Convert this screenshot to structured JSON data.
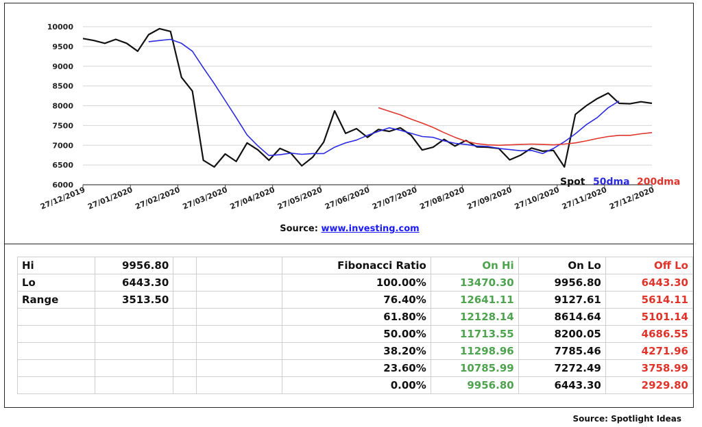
{
  "chart_data": {
    "type": "line",
    "y_ticks": [
      "10000",
      "9500",
      "9000",
      "8500",
      "8000",
      "7500",
      "7000",
      "6500",
      "6000"
    ],
    "ylim": [
      6000,
      10000
    ],
    "x_tick_labels": [
      "27/12/2019",
      "27/01/2020",
      "27/02/2020",
      "27/03/2020",
      "27/04/2020",
      "27/05/2020",
      "27/06/2020",
      "27/07/2020",
      "27/08/2020",
      "27/09/2020",
      "27/10/2020",
      "27/11/2020",
      "27/12/2020"
    ],
    "x_count": 53,
    "series": [
      {
        "name": "Spot",
        "color": "#111111",
        "values": [
          9700,
          9650,
          9580,
          9680,
          9580,
          9380,
          9800,
          9950,
          9880,
          8720,
          8370,
          6620,
          6450,
          6780,
          6590,
          7060,
          6880,
          6620,
          6920,
          6800,
          6480,
          6700,
          7080,
          7870,
          7300,
          7420,
          7200,
          7400,
          7350,
          7440,
          7250,
          6880,
          6950,
          7150,
          6980,
          7120,
          6960,
          6950,
          6920,
          6630,
          6750,
          6930,
          6850,
          6870,
          6450,
          7780,
          8000,
          8180,
          8320,
          8060,
          8050,
          8100,
          8060
        ]
      },
      {
        "name": "50dma",
        "color": "#2a2ae0",
        "start": 6,
        "values": [
          9620,
          9650,
          9680,
          9580,
          9380,
          8960,
          8560,
          8130,
          7700,
          7260,
          6980,
          6740,
          6760,
          6800,
          6770,
          6790,
          6790,
          6950,
          7060,
          7130,
          7250,
          7350,
          7440,
          7380,
          7300,
          7220,
          7200,
          7110,
          7050,
          7020,
          6980,
          6970,
          6920,
          6890,
          6860,
          6870,
          6790,
          6920,
          7090,
          7290,
          7520,
          7700,
          7950,
          8120
        ]
      },
      {
        "name": "200dma",
        "color": "#e0342b",
        "start": 27,
        "values": [
          7950,
          7860,
          7770,
          7660,
          7560,
          7450,
          7320,
          7200,
          7100,
          7040,
          7010,
          7000,
          7010,
          7020,
          7030,
          7020,
          7010,
          7030,
          7060,
          7110,
          7170,
          7220,
          7250,
          7250,
          7290,
          7320
        ]
      }
    ],
    "source": "Source: ",
    "source_link": "www.investing.com"
  },
  "table": {
    "rows": [
      [
        "Hi",
        "9956.80",
        "",
        "",
        "Fibonacci  Ratio",
        "On Hi",
        "On Lo",
        "Off Lo"
      ],
      [
        "Lo",
        "6443.30",
        "",
        "",
        "100.00%",
        "13470.30",
        "9956.80",
        "6443.30"
      ],
      [
        "Range",
        "3513.50",
        "",
        "",
        "76.40%",
        "12641.11",
        "9127.61",
        "5614.11"
      ],
      [
        "",
        "",
        "",
        "",
        "61.80%",
        "12128.14",
        "8614.64",
        "5101.14"
      ],
      [
        "",
        "",
        "",
        "",
        "50.00%",
        "11713.55",
        "8200.05",
        "4686.55"
      ],
      [
        "",
        "",
        "",
        "",
        "38.20%",
        "11298.96",
        "7785.46",
        "4271.96"
      ],
      [
        "",
        "",
        "",
        "",
        "23.60%",
        "10785.99",
        "7272.49",
        "3758.99"
      ],
      [
        "",
        "",
        "",
        "",
        "0.00%",
        "9956.80",
        "6443.30",
        "2929.80"
      ]
    ]
  },
  "footer": {
    "source": "Source: Spotlight Ideas"
  }
}
